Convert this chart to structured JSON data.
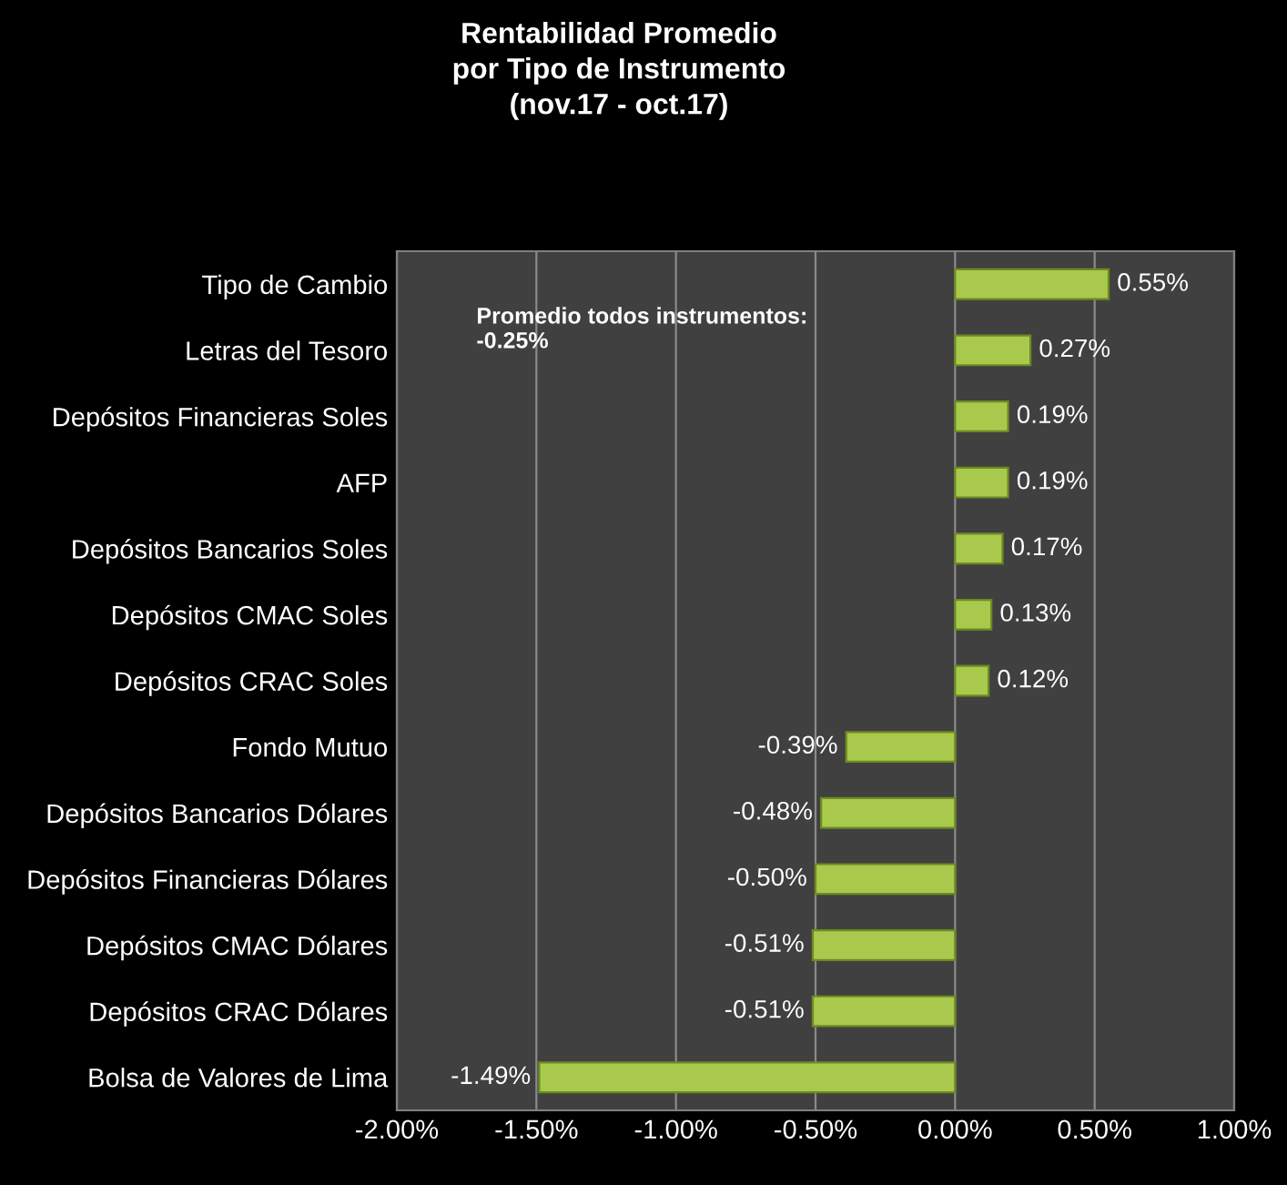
{
  "chart_data": {
    "type": "bar",
    "orientation": "horizontal",
    "title": "Rentabilidad Promedio\npor Tipo de Instrumento\n(nov.17 - oct.17)",
    "categories": [
      "Tipo de Cambio",
      "Letras del Tesoro",
      "Depósitos Financieras Soles",
      "AFP",
      "Depósitos Bancarios Soles",
      "Depósitos CMAC Soles",
      "Depósitos CRAC Soles",
      "Fondo Mutuo",
      "Depósitos Bancarios Dólares",
      "Depósitos Financieras Dólares",
      "Depósitos CMAC Dólares",
      "Depósitos CRAC Dólares",
      "Bolsa de Valores de Lima"
    ],
    "values": [
      0.55,
      0.27,
      0.19,
      0.19,
      0.17,
      0.13,
      0.12,
      -0.39,
      -0.48,
      -0.5,
      -0.51,
      -0.51,
      -1.49
    ],
    "value_labels": [
      "0.55%",
      "0.27%",
      "0.19%",
      "0.19%",
      "0.17%",
      "0.13%",
      "0.12%",
      "-0.39%",
      "-0.48%",
      "-0.50%",
      "-0.51%",
      "-0.51%",
      "-1.49%"
    ],
    "color": "#a8c94c",
    "xlim": [
      -2,
      1
    ],
    "xticks": [
      {
        "value": -2,
        "label": "-2.00%"
      },
      {
        "value": -1.5,
        "label": "-1.50%"
      },
      {
        "value": -1,
        "label": "-1.00%"
      },
      {
        "value": -0.5,
        "label": "-0.50%"
      },
      {
        "value": 0,
        "label": "0.00%"
      },
      {
        "value": 0.5,
        "label": "0.50%"
      },
      {
        "value": 1,
        "label": "1.00%"
      }
    ],
    "grid": "x",
    "legend": false,
    "annotations": [
      "Promedio todos instrumentos:\n-0.25%"
    ]
  }
}
